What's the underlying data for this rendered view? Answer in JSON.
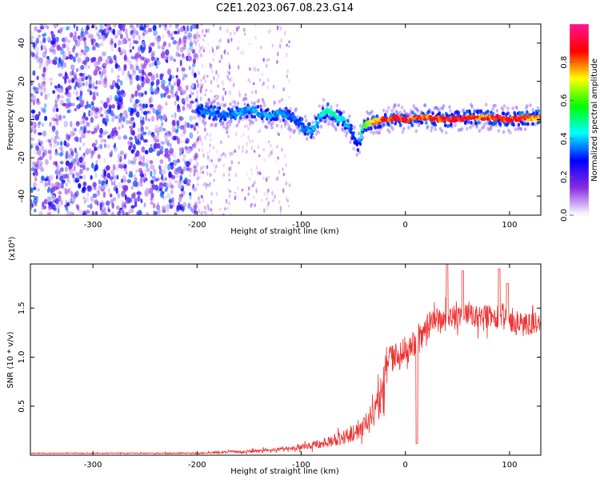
{
  "title": "C2E1.2023.067.08.23.G14",
  "chart_data": [
    {
      "type": "heatmap",
      "xlabel": "Height of straight line (km)",
      "ylabel": "Frequency (Hz)",
      "xlim": [
        -360,
        130
      ],
      "ylim": [
        -50,
        50
      ],
      "x_ticks": [
        -300,
        -200,
        -100,
        0,
        100
      ],
      "y_ticks": [
        -40,
        -20,
        0,
        20,
        40
      ],
      "colorbar": {
        "label": "Normalized spectral amplitude",
        "range": [
          0.0,
          1.0
        ],
        "ticks": [
          0.0,
          0.2,
          0.4,
          0.6,
          0.8
        ],
        "tick_labels": [
          "0.0",
          "0.2",
          "0.4",
          "0.6",
          "0.8"
        ],
        "colormap": [
          "#ffffff",
          "#8a2be2",
          "#0000ff",
          "#00ffff",
          "#00ff00",
          "#ffff00",
          "#ff0000",
          "#ff1493"
        ]
      },
      "noise_region_x": [
        -360,
        -200
      ],
      "sparse_region_x": [
        -200,
        -110
      ],
      "signal_trace": {
        "x": [
          -200,
          -190,
          -180,
          -170,
          -160,
          -150,
          -140,
          -130,
          -120,
          -110,
          -100,
          -90,
          -80,
          -75,
          -70,
          -65,
          -60,
          -55,
          -50,
          -47,
          -45,
          -40,
          -30,
          -20,
          -10,
          0,
          20,
          40,
          60,
          80,
          100,
          120,
          130
        ],
        "y": [
          5,
          4,
          3,
          2,
          4,
          5,
          3,
          2,
          4,
          1,
          -3,
          -6,
          3,
          5,
          3,
          1,
          0,
          -3,
          -8,
          -12,
          -13,
          -3,
          -1,
          0,
          1,
          0,
          1,
          0,
          1,
          1,
          0,
          1,
          1
        ],
        "peak_amplitude": [
          0.3,
          0.4,
          0.35,
          0.35,
          0.4,
          0.4,
          0.4,
          0.4,
          0.4,
          0.35,
          0.35,
          0.4,
          0.45,
          0.5,
          0.5,
          0.5,
          0.45,
          0.4,
          0.3,
          0.3,
          0.3,
          0.6,
          0.8,
          0.9,
          0.9,
          0.9,
          0.85,
          0.9,
          0.9,
          0.85,
          0.9,
          0.85,
          0.8
        ]
      }
    },
    {
      "type": "line",
      "xlabel": "Height of straight line (km)",
      "ylabel": "SNR (10 * v/v)",
      "y_multiplier": "(x10⁴)",
      "xlim": [
        -360,
        130
      ],
      "ylim": [
        0.0,
        1.95
      ],
      "x_ticks": [
        -300,
        -200,
        -100,
        0,
        100
      ],
      "y_ticks": [
        0.5,
        1.0,
        1.5
      ],
      "y_tick_labels": [
        "0.5",
        "1.0",
        "1.5"
      ],
      "series": [
        {
          "color": "#ee3333",
          "x": [
            -360,
            -300,
            -250,
            -200,
            -150,
            -120,
            -100,
            -80,
            -60,
            -50,
            -40,
            -30,
            -25,
            -20,
            -15,
            -10,
            -5,
            0,
            5,
            10,
            15,
            20,
            25,
            30,
            40,
            50,
            60,
            70,
            80,
            90,
            100,
            110,
            120,
            130
          ],
          "y": [
            0.02,
            0.02,
            0.02,
            0.02,
            0.04,
            0.06,
            0.08,
            0.12,
            0.18,
            0.23,
            0.28,
            0.4,
            0.55,
            0.75,
            0.95,
            1.0,
            1.05,
            1.1,
            1.15,
            1.12,
            1.2,
            1.3,
            1.35,
            1.38,
            1.38,
            1.42,
            1.45,
            1.4,
            1.42,
            1.4,
            1.38,
            1.35,
            1.33,
            1.35
          ],
          "noise_amp": [
            0.005,
            0.005,
            0.005,
            0.008,
            0.015,
            0.02,
            0.03,
            0.05,
            0.07,
            0.09,
            0.11,
            0.15,
            0.18,
            0.18,
            0.18,
            0.15,
            0.15,
            0.15,
            0.14,
            0.12,
            0.14,
            0.14,
            0.13,
            0.13,
            0.13,
            0.13,
            0.13,
            0.12,
            0.12,
            0.12,
            0.12,
            0.12,
            0.12,
            0.12
          ],
          "features": [
            {
              "x": 11,
              "y": 0.12
            },
            {
              "x": 40,
              "y": 1.95
            },
            {
              "x": 55,
              "y": 1.88
            },
            {
              "x": 90,
              "y": 1.9
            },
            {
              "x": 98,
              "y": 1.75
            }
          ]
        }
      ]
    }
  ]
}
